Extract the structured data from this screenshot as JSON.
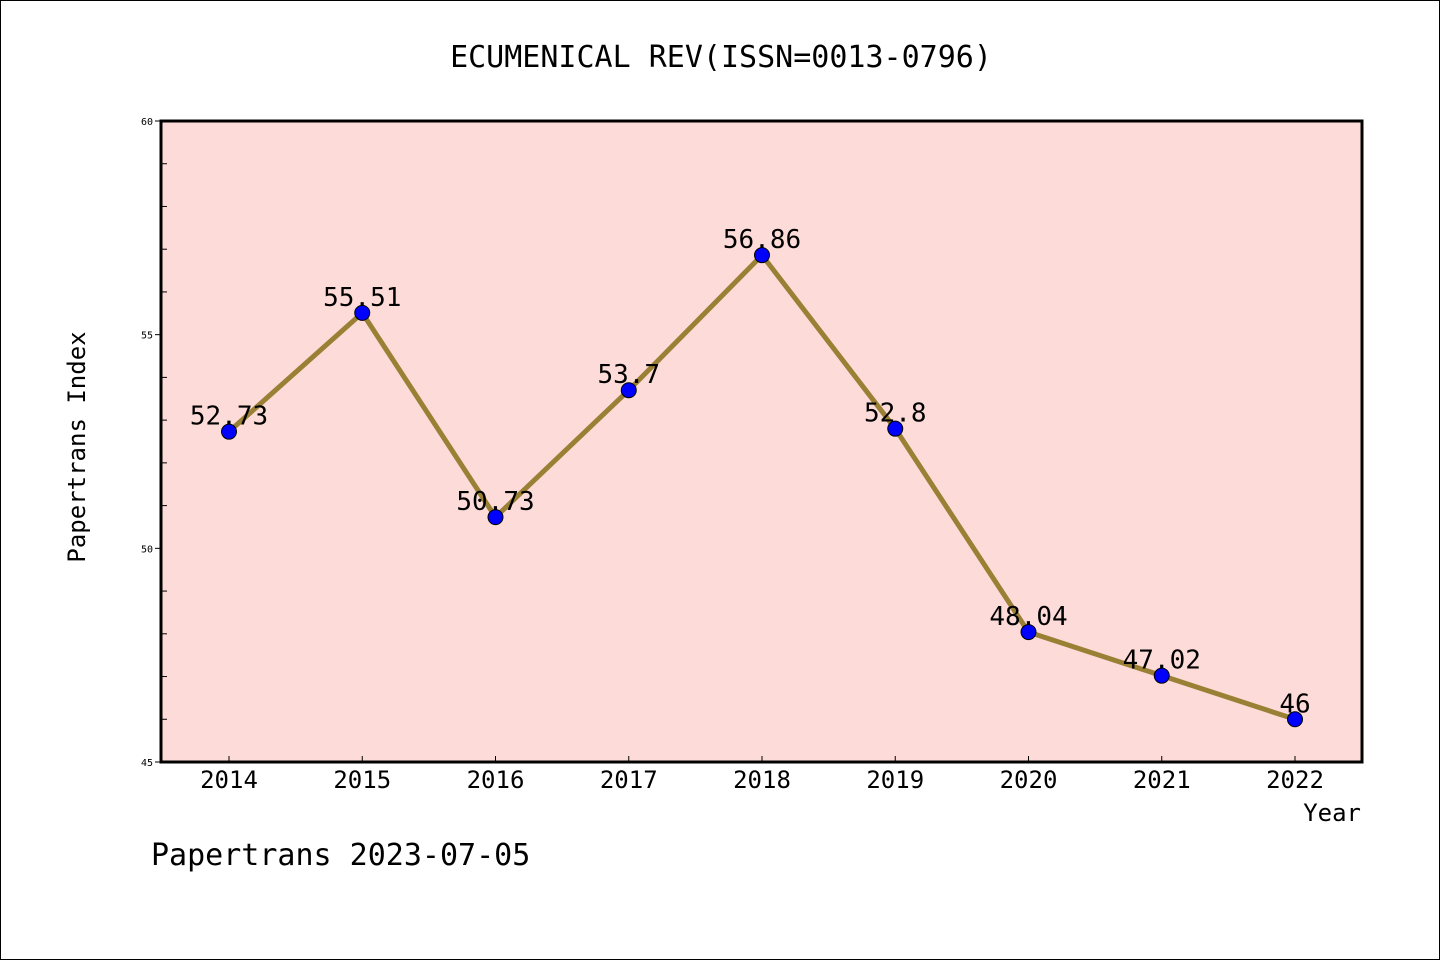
{
  "chart_data": {
    "type": "line",
    "title": "ECUMENICAL REV(ISSN=0013-0796)",
    "xlabel": "Year",
    "ylabel": "Papertrans Index",
    "categories": [
      "2014",
      "2015",
      "2016",
      "2017",
      "2018",
      "2019",
      "2020",
      "2021",
      "2022"
    ],
    "series": [
      {
        "values": [
          52.73,
          55.51,
          50.73,
          53.7,
          56.86,
          52.8,
          48.04,
          47.02,
          46
        ],
        "labels": [
          "52.73",
          "55.51",
          "50.73",
          "53.7",
          "56.86",
          "52.8",
          "48.04",
          "47.02",
          "46"
        ]
      }
    ],
    "ylim": [
      45,
      60
    ],
    "yticks": [
      "45",
      "50",
      "55",
      "60"
    ],
    "grid": false,
    "legend": "none",
    "colors": {
      "plot_background": "#fddbd8",
      "line": "#9a8035",
      "marker": "#0000ff"
    }
  },
  "footer": {
    "text": "Papertrans 2023-07-05"
  }
}
